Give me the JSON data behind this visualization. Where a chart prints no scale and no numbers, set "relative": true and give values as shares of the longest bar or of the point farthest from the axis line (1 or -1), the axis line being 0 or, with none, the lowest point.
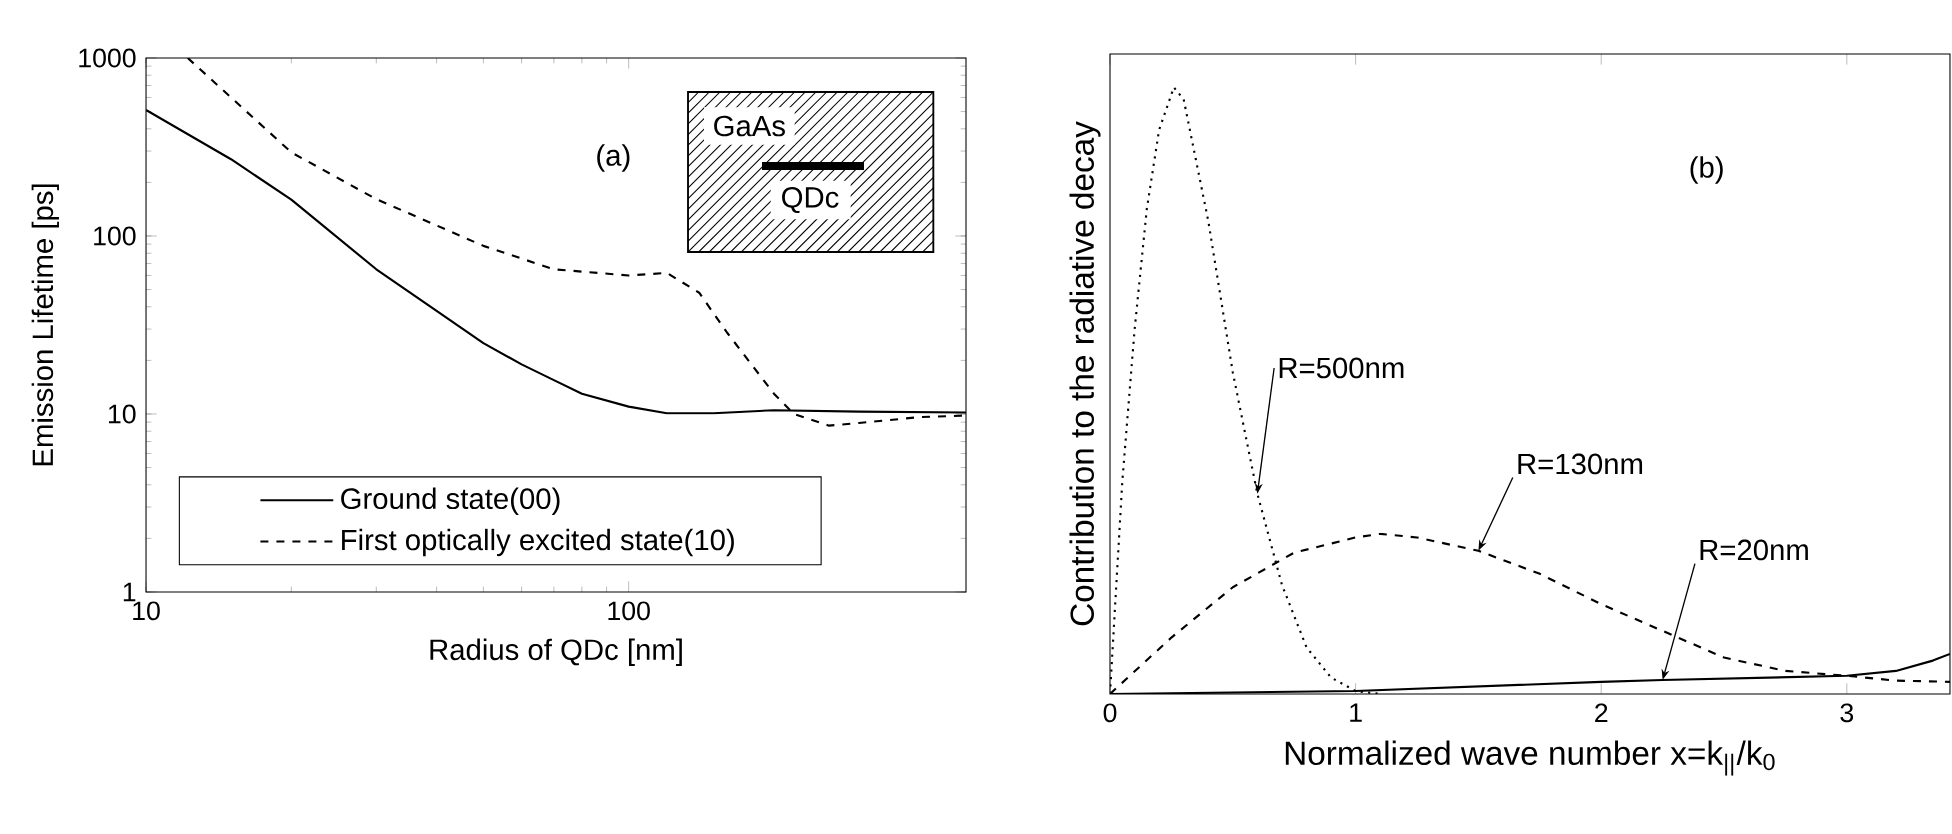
{
  "chart_data": [
    {
      "type": "line",
      "xlabel": "Radius of QDc [nm]",
      "ylabel": "Emission Lifetime [ps]",
      "log": "xy",
      "xlim": [
        10,
        500
      ],
      "ylim": [
        1,
        1000
      ],
      "xticks": [
        10,
        100
      ],
      "yticks": [
        1,
        10,
        100,
        1000
      ],
      "legend": "bottom",
      "grid": false,
      "annotations": [
        "(a)",
        "GaAs",
        "QDc"
      ],
      "series": [
        {
          "name": "Ground state(00)",
          "color": "#000000",
          "line_style": "solid",
          "x": [
            10,
            15,
            20,
            30,
            40,
            50,
            60,
            70,
            80,
            100,
            120,
            150,
            200,
            300,
            500
          ],
          "values": [
            510,
            270,
            160,
            65,
            38,
            25,
            19,
            15.5,
            13,
            11,
            10.1,
            10.1,
            10.5,
            10.3,
            10.2
          ]
        },
        {
          "name": "First optically excited state(10)",
          "color": "#000000",
          "line_style": "dashed",
          "x": [
            12.2,
            20,
            30,
            50,
            70,
            100,
            120,
            140,
            160,
            200,
            220,
            260,
            300,
            400,
            500
          ],
          "values": [
            1000,
            295,
            161,
            88,
            65,
            60,
            62,
            48,
            28.6,
            13,
            10,
            8.6,
            8.9,
            9.6,
            9.8
          ]
        }
      ]
    },
    {
      "type": "line",
      "relative": true,
      "xlabel": "Normalized wave number x=k$_{||}$/k$_{0}$",
      "ylabel": "Contribution to the radiative decay",
      "xlim": [
        0,
        3.42
      ],
      "xticks": [
        0,
        1,
        2,
        3
      ],
      "legend": false,
      "grid": false,
      "annotations": [
        "(b)"
      ],
      "series": [
        {
          "name": "R=500nm",
          "color": "#000000",
          "line_style": "dotted",
          "x": [
            0,
            0.05,
            0.1,
            0.15,
            0.2,
            0.26,
            0.3,
            0.4,
            0.5,
            0.6,
            0.7,
            0.8,
            0.9,
            1.0,
            1.1
          ],
          "values": [
            0,
            0.35,
            0.6,
            0.8,
            0.93,
            1,
            0.98,
            0.78,
            0.53,
            0.33,
            0.18,
            0.077,
            0.027,
            0.005,
            0
          ]
        },
        {
          "name": "R=130nm",
          "color": "#000000",
          "line_style": "dashed",
          "x": [
            0,
            0.25,
            0.5,
            0.75,
            1.0,
            1.1,
            1.25,
            1.5,
            1.75,
            2.0,
            2.25,
            2.5,
            2.75,
            3.0,
            3.2,
            3.42
          ],
          "values": [
            0,
            0.093,
            0.176,
            0.233,
            0.258,
            0.264,
            0.258,
            0.236,
            0.198,
            0.148,
            0.104,
            0.06,
            0.038,
            0.03,
            0.022,
            0.02
          ]
        },
        {
          "name": "R=20nm",
          "color": "#000000",
          "line_style": "solid",
          "x": [
            0,
            1,
            2,
            2.25,
            3,
            3.2,
            3.35,
            3.42
          ],
          "values": [
            0,
            0.005,
            0.02,
            0.023,
            0.03,
            0.038,
            0.055,
            0.066
          ]
        }
      ]
    }
  ]
}
